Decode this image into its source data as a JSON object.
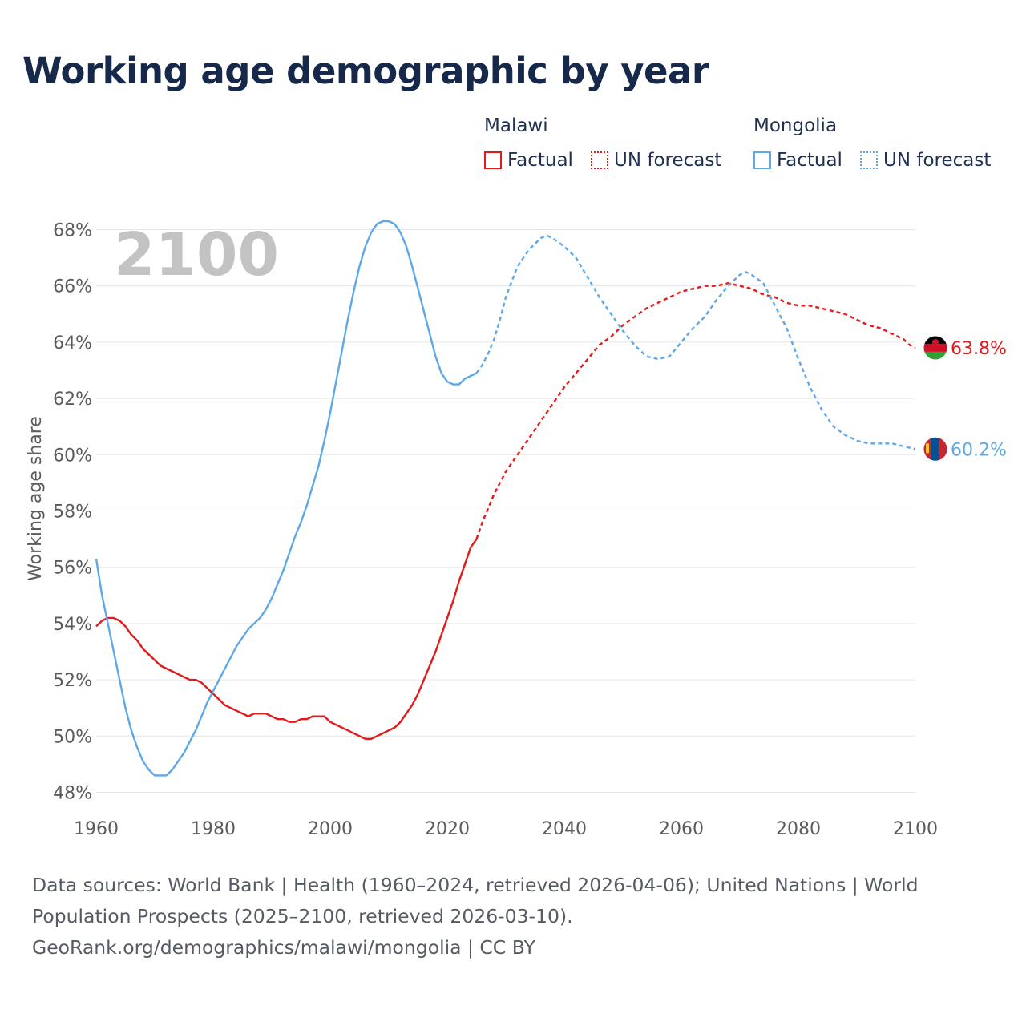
{
  "title": "Working age demographic by year",
  "legend": {
    "groups": [
      {
        "name": "Malawi",
        "color": "#e31a1c",
        "items": [
          "Factual",
          "UN forecast"
        ]
      },
      {
        "name": "Mongolia",
        "color": "#5fa8e8",
        "items": [
          "Factual",
          "UN forecast"
        ]
      }
    ]
  },
  "footer": {
    "sources": "Data sources: World Bank | Health (1960–2024, retrieved 2026-04-06); United Nations | World Population Prospects (2025–2100, retrieved 2026-03-10).",
    "credit": "GeoRank.org/demographics/malawi/mongolia | CC BY"
  },
  "chart_data": {
    "type": "line",
    "title": "Working age demographic by year",
    "ylabel": "Working age share",
    "xlabel": "",
    "year_label": "2100",
    "xlim": [
      1960,
      2100
    ],
    "ylim": [
      47.5,
      68.5
    ],
    "x_ticks": [
      1960,
      1980,
      2000,
      2020,
      2040,
      2060,
      2080,
      2100
    ],
    "y_ticks": [
      48,
      50,
      52,
      54,
      56,
      58,
      60,
      62,
      64,
      66,
      68
    ],
    "y_tick_labels": [
      "48%",
      "50%",
      "52%",
      "54%",
      "56%",
      "58%",
      "60%",
      "62%",
      "64%",
      "66%",
      "68%"
    ],
    "grid": true,
    "forecast_start": 2025,
    "series": [
      {
        "name": "Malawi",
        "color": "#e31a1c",
        "end_label": "63.8%",
        "flag": "malawi-flag",
        "points": [
          [
            1960,
            53.9
          ],
          [
            1961,
            54.1
          ],
          [
            1962,
            54.2
          ],
          [
            1963,
            54.2
          ],
          [
            1964,
            54.1
          ],
          [
            1965,
            53.9
          ],
          [
            1966,
            53.6
          ],
          [
            1967,
            53.4
          ],
          [
            1968,
            53.1
          ],
          [
            1969,
            52.9
          ],
          [
            1970,
            52.7
          ],
          [
            1971,
            52.5
          ],
          [
            1972,
            52.4
          ],
          [
            1973,
            52.3
          ],
          [
            1974,
            52.2
          ],
          [
            1975,
            52.1
          ],
          [
            1976,
            52.0
          ],
          [
            1977,
            52.0
          ],
          [
            1978,
            51.9
          ],
          [
            1979,
            51.7
          ],
          [
            1980,
            51.5
          ],
          [
            1981,
            51.3
          ],
          [
            1982,
            51.1
          ],
          [
            1983,
            51.0
          ],
          [
            1984,
            50.9
          ],
          [
            1985,
            50.8
          ],
          [
            1986,
            50.7
          ],
          [
            1987,
            50.8
          ],
          [
            1988,
            50.8
          ],
          [
            1989,
            50.8
          ],
          [
            1990,
            50.7
          ],
          [
            1991,
            50.6
          ],
          [
            1992,
            50.6
          ],
          [
            1993,
            50.5
          ],
          [
            1994,
            50.5
          ],
          [
            1995,
            50.6
          ],
          [
            1996,
            50.6
          ],
          [
            1997,
            50.7
          ],
          [
            1998,
            50.7
          ],
          [
            1999,
            50.7
          ],
          [
            2000,
            50.5
          ],
          [
            2001,
            50.4
          ],
          [
            2002,
            50.3
          ],
          [
            2003,
            50.2
          ],
          [
            2004,
            50.1
          ],
          [
            2005,
            50.0
          ],
          [
            2006,
            49.9
          ],
          [
            2007,
            49.9
          ],
          [
            2008,
            50.0
          ],
          [
            2009,
            50.1
          ],
          [
            2010,
            50.2
          ],
          [
            2011,
            50.3
          ],
          [
            2012,
            50.5
          ],
          [
            2013,
            50.8
          ],
          [
            2014,
            51.1
          ],
          [
            2015,
            51.5
          ],
          [
            2016,
            52.0
          ],
          [
            2017,
            52.5
          ],
          [
            2018,
            53.0
          ],
          [
            2019,
            53.6
          ],
          [
            2020,
            54.2
          ],
          [
            2021,
            54.8
          ],
          [
            2022,
            55.5
          ],
          [
            2023,
            56.1
          ],
          [
            2024,
            56.7
          ],
          [
            2025,
            57.0
          ],
          [
            2026,
            57.6
          ],
          [
            2027,
            58.1
          ],
          [
            2028,
            58.6
          ],
          [
            2029,
            59.0
          ],
          [
            2030,
            59.4
          ],
          [
            2032,
            60.0
          ],
          [
            2034,
            60.6
          ],
          [
            2036,
            61.2
          ],
          [
            2038,
            61.8
          ],
          [
            2040,
            62.4
          ],
          [
            2042,
            62.9
          ],
          [
            2044,
            63.4
          ],
          [
            2046,
            63.9
          ],
          [
            2048,
            64.2
          ],
          [
            2050,
            64.6
          ],
          [
            2052,
            64.9
          ],
          [
            2054,
            65.2
          ],
          [
            2056,
            65.4
          ],
          [
            2058,
            65.6
          ],
          [
            2060,
            65.8
          ],
          [
            2062,
            65.9
          ],
          [
            2064,
            66.0
          ],
          [
            2066,
            66.0
          ],
          [
            2068,
            66.1
          ],
          [
            2070,
            66.0
          ],
          [
            2072,
            65.9
          ],
          [
            2074,
            65.7
          ],
          [
            2076,
            65.6
          ],
          [
            2078,
            65.4
          ],
          [
            2080,
            65.3
          ],
          [
            2082,
            65.3
          ],
          [
            2084,
            65.2
          ],
          [
            2086,
            65.1
          ],
          [
            2088,
            65.0
          ],
          [
            2090,
            64.8
          ],
          [
            2092,
            64.6
          ],
          [
            2094,
            64.5
          ],
          [
            2096,
            64.3
          ],
          [
            2098,
            64.1
          ],
          [
            2099,
            63.9
          ],
          [
            2100,
            63.8
          ]
        ]
      },
      {
        "name": "Mongolia",
        "color": "#5fa8e8",
        "end_label": "60.2%",
        "flag": "mongolia-flag",
        "points": [
          [
            1960,
            56.3
          ],
          [
            1961,
            55.0
          ],
          [
            1962,
            54.0
          ],
          [
            1963,
            53.0
          ],
          [
            1964,
            52.0
          ],
          [
            1965,
            51.0
          ],
          [
            1966,
            50.2
          ],
          [
            1967,
            49.6
          ],
          [
            1968,
            49.1
          ],
          [
            1969,
            48.8
          ],
          [
            1970,
            48.6
          ],
          [
            1971,
            48.6
          ],
          [
            1972,
            48.6
          ],
          [
            1973,
            48.8
          ],
          [
            1974,
            49.1
          ],
          [
            1975,
            49.4
          ],
          [
            1976,
            49.8
          ],
          [
            1977,
            50.2
          ],
          [
            1978,
            50.7
          ],
          [
            1979,
            51.2
          ],
          [
            1980,
            51.6
          ],
          [
            1981,
            52.0
          ],
          [
            1982,
            52.4
          ],
          [
            1983,
            52.8
          ],
          [
            1984,
            53.2
          ],
          [
            1985,
            53.5
          ],
          [
            1986,
            53.8
          ],
          [
            1987,
            54.0
          ],
          [
            1988,
            54.2
          ],
          [
            1989,
            54.5
          ],
          [
            1990,
            54.9
          ],
          [
            1991,
            55.4
          ],
          [
            1992,
            55.9
          ],
          [
            1993,
            56.5
          ],
          [
            1994,
            57.1
          ],
          [
            1995,
            57.6
          ],
          [
            1996,
            58.2
          ],
          [
            1997,
            58.9
          ],
          [
            1998,
            59.6
          ],
          [
            1999,
            60.5
          ],
          [
            2000,
            61.5
          ],
          [
            2001,
            62.6
          ],
          [
            2002,
            63.7
          ],
          [
            2003,
            64.8
          ],
          [
            2004,
            65.8
          ],
          [
            2005,
            66.7
          ],
          [
            2006,
            67.4
          ],
          [
            2007,
            67.9
          ],
          [
            2008,
            68.2
          ],
          [
            2009,
            68.3
          ],
          [
            2010,
            68.3
          ],
          [
            2011,
            68.2
          ],
          [
            2012,
            67.9
          ],
          [
            2013,
            67.4
          ],
          [
            2014,
            66.7
          ],
          [
            2015,
            65.9
          ],
          [
            2016,
            65.1
          ],
          [
            2017,
            64.3
          ],
          [
            2018,
            63.5
          ],
          [
            2019,
            62.9
          ],
          [
            2020,
            62.6
          ],
          [
            2021,
            62.5
          ],
          [
            2022,
            62.5
          ],
          [
            2023,
            62.7
          ],
          [
            2024,
            62.8
          ],
          [
            2025,
            62.9
          ],
          [
            2026,
            63.2
          ],
          [
            2027,
            63.6
          ],
          [
            2028,
            64.1
          ],
          [
            2029,
            64.8
          ],
          [
            2030,
            65.6
          ],
          [
            2032,
            66.7
          ],
          [
            2034,
            67.3
          ],
          [
            2036,
            67.7
          ],
          [
            2037,
            67.8
          ],
          [
            2038,
            67.7
          ],
          [
            2040,
            67.4
          ],
          [
            2042,
            67.0
          ],
          [
            2044,
            66.3
          ],
          [
            2046,
            65.6
          ],
          [
            2048,
            65.0
          ],
          [
            2050,
            64.4
          ],
          [
            2052,
            63.9
          ],
          [
            2054,
            63.5
          ],
          [
            2056,
            63.4
          ],
          [
            2058,
            63.5
          ],
          [
            2060,
            64.0
          ],
          [
            2062,
            64.5
          ],
          [
            2064,
            64.9
          ],
          [
            2066,
            65.5
          ],
          [
            2068,
            66.0
          ],
          [
            2070,
            66.4
          ],
          [
            2071,
            66.5
          ],
          [
            2072,
            66.4
          ],
          [
            2074,
            66.1
          ],
          [
            2076,
            65.3
          ],
          [
            2078,
            64.5
          ],
          [
            2080,
            63.4
          ],
          [
            2082,
            62.4
          ],
          [
            2084,
            61.6
          ],
          [
            2086,
            61.0
          ],
          [
            2088,
            60.7
          ],
          [
            2090,
            60.5
          ],
          [
            2092,
            60.4
          ],
          [
            2094,
            60.4
          ],
          [
            2096,
            60.4
          ],
          [
            2098,
            60.3
          ],
          [
            2100,
            60.2
          ]
        ]
      }
    ]
  }
}
